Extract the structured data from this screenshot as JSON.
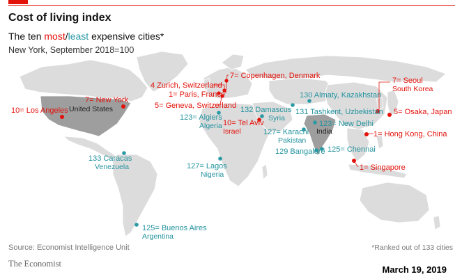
{
  "title": "Cost of living index",
  "subtitle": {
    "pre": "The ten ",
    "most": "most",
    "slash": "/",
    "least": "least",
    "post": " expensive cities*"
  },
  "subnote": "New York, September 2018=100",
  "colors": {
    "most": "#e3120b",
    "least": "#2a9aa5",
    "land": "#dcdcdc",
    "highlight": "#9e9e9e"
  },
  "countries": {
    "us": "United States",
    "india": "India"
  },
  "cities": {
    "los_angeles": {
      "name": "10= Los Angeles"
    },
    "new_york": {
      "name": "7= New York"
    },
    "zurich": {
      "name": "4 Zurich,",
      "country": " Switzerland"
    },
    "paris": {
      "name": "1= Paris,",
      "country": " France"
    },
    "geneva": {
      "name": "5= Geneva,",
      "country": " Switzerland"
    },
    "copenhagen": {
      "name": "7= Copenhagen,",
      "country": " Denmark"
    },
    "tel_aviv": {
      "name": "10= Tel Aviv",
      "country": "Israel"
    },
    "seoul": {
      "name": "7= Seoul",
      "country": "South Korea"
    },
    "osaka": {
      "name": "5= Osaka,",
      "country": " Japan"
    },
    "hong_kong": {
      "name": "1= Hong Kong,",
      "country": " China"
    },
    "singapore": {
      "name": "1= Singapore"
    },
    "algiers": {
      "name": "123= Algiers",
      "country": "Algeria"
    },
    "damascus": {
      "name": "132 Damascus",
      "country": "Syria"
    },
    "almaty": {
      "name": "130 Almaty,",
      "country": " Kazakhstan"
    },
    "tashkent": {
      "name": "131 Tashkent,",
      "country": " Uzbekistan"
    },
    "karachi": {
      "name": "127= Karachi",
      "country": "Pakistan"
    },
    "new_delhi": {
      "name": "123= New Delhi"
    },
    "bangalore": {
      "name": "129 Bangalore"
    },
    "chennai": {
      "name": "125= Chennai"
    },
    "caracas": {
      "name": "133 Caracas",
      "country": "Venezuela"
    },
    "lagos": {
      "name": "127= Lagos",
      "country": "Nigeria"
    },
    "buenos_aires": {
      "name": "125= Buenos Aires",
      "country": "Argentina"
    }
  },
  "source": "Source: Economist Intelligence Unit",
  "note": "*Ranked out of 133 cities",
  "brand": "The Economist",
  "date": "March 19, 2019"
}
